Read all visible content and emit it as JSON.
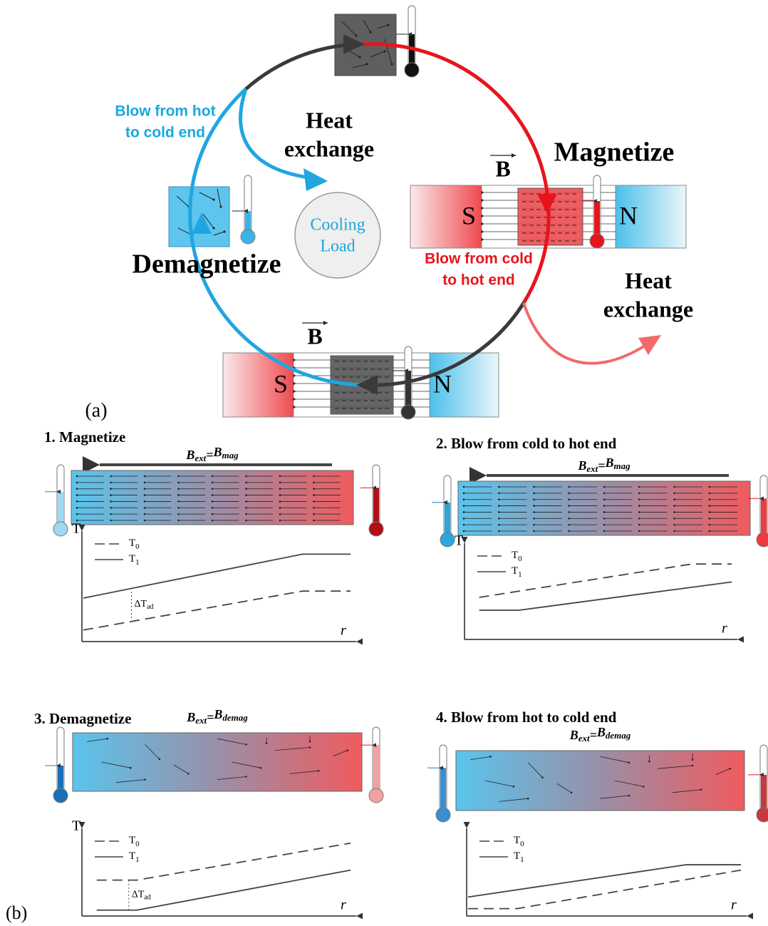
{
  "part_a": {
    "label": "(a)",
    "blow_hot_to_cold": [
      "Blow from hot",
      "to cold end"
    ],
    "heat_exchange_left": [
      "Heat",
      "exchange"
    ],
    "magnetize": "Magnetize",
    "cooling_load": [
      "Cooling",
      "Load"
    ],
    "demagnetize": "Demagnetize",
    "blow_cold_to_hot": [
      "Blow from cold",
      "to hot end"
    ],
    "heat_exchange_right": [
      "Heat",
      "exchange"
    ],
    "magnet_right": {
      "field": "B",
      "south": "S",
      "north": "N"
    },
    "magnet_bottom": {
      "field": "B",
      "south": "S",
      "north": "N"
    }
  },
  "part_b": {
    "label": "(b)",
    "panels": [
      {
        "title": "1. Magnetize",
        "field": {
          "symbol": "B",
          "sub": "ext",
          "equals": "=",
          "rhs_symbol": "B",
          "rhs_sub": "mag"
        },
        "y_axis": "T",
        "x_axis": "r",
        "legend": [
          {
            "symbol": "T",
            "sub": "0"
          },
          {
            "symbol": "T",
            "sub": "1"
          }
        ],
        "delta": {
          "symbol": "ΔT",
          "sub": "ad"
        }
      },
      {
        "title": "2. Blow from cold to hot end",
        "field": {
          "symbol": "B",
          "sub": "ext",
          "equals": "=",
          "rhs_symbol": "B",
          "rhs_sub": "mag"
        },
        "y_axis": "T",
        "x_axis": "r",
        "legend": [
          {
            "symbol": "T",
            "sub": "0"
          },
          {
            "symbol": "T",
            "sub": "1"
          }
        ]
      },
      {
        "title": "3. Demagnetize",
        "field": {
          "symbol": "B",
          "sub": "ext",
          "equals": "=",
          "rhs_symbol": "B",
          "rhs_sub": "demag"
        },
        "y_axis": "T",
        "x_axis": "r",
        "legend": [
          {
            "symbol": "T",
            "sub": "0"
          },
          {
            "symbol": "T",
            "sub": "1"
          }
        ],
        "delta": {
          "symbol": "ΔT",
          "sub": "ad"
        }
      },
      {
        "title": "4. Blow from hot to cold end",
        "field": {
          "symbol": "B",
          "sub": "ext",
          "equals": "=",
          "rhs_symbol": "B",
          "rhs_sub": "demag"
        },
        "x_axis": "r",
        "legend": [
          {
            "symbol": "T",
            "sub": "0"
          },
          {
            "symbol": "T",
            "sub": "1"
          }
        ]
      }
    ]
  }
}
